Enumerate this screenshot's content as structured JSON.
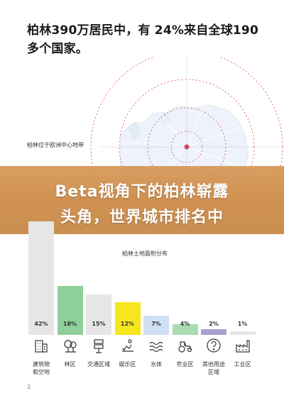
{
  "headline": "柏林390万居民中，有 24%来自全球190多个国家。",
  "map_label": "柏林位于欧洲中心地带",
  "banner": {
    "line1": "Beta视角下的柏林崭露",
    "line2": "头角，世界城市排名中"
  },
  "colors": {
    "banner_bg": "#cf8f4b",
    "bar_gray": "#e6e6e6",
    "bar_green": "#8fcf9a",
    "bar_yellow": "#f6e61e",
    "bar_blue": "#cfe0f4",
    "bar_purple": "#a9a0cc",
    "map_circle": "#d6465a",
    "map_land": "#eef3fb"
  },
  "chart_data": {
    "type": "bar",
    "title": "柏林土地面积分布",
    "categories": [
      "建筑物和空地",
      "林区",
      "交通区域",
      "娱乐区",
      "水体",
      "农业区",
      "其他用途区域",
      "工业区"
    ],
    "values": [
      42,
      18,
      15,
      12,
      7,
      4,
      2,
      1
    ],
    "value_labels": [
      "42%",
      "18%",
      "15%",
      "12%",
      "7%",
      "4%",
      "2%",
      "1%"
    ],
    "icons": [
      "building-icon",
      "tree-icon",
      "road-sign-icon",
      "recreation-icon",
      "water-waves-icon",
      "tractor-icon",
      "question-mark-icon",
      "factory-icon"
    ],
    "bar_colors": [
      "#e6e6e6",
      "#8fcf9a",
      "#e6e6e6",
      "#f6e61e",
      "#cfe0f4",
      "#a9dcb2",
      "#a9a0cc",
      "#e6e6e6"
    ]
  },
  "page_number": "2"
}
